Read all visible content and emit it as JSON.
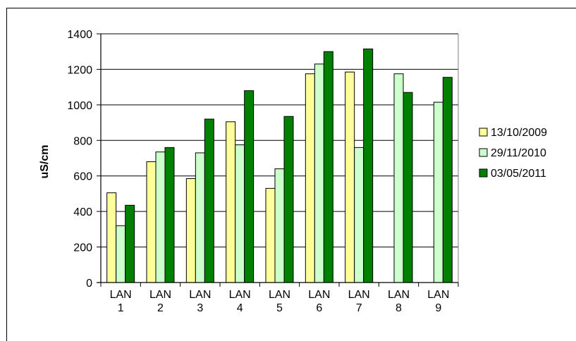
{
  "chart_data": {
    "type": "bar",
    "title": "",
    "xlabel": "",
    "ylabel": "uS/cm",
    "ylim": [
      0,
      1400
    ],
    "yticks": [
      0,
      200,
      400,
      600,
      800,
      1000,
      1200,
      1400
    ],
    "grid": true,
    "legend_position": "right",
    "categories": [
      [
        "LAN",
        "1"
      ],
      [
        "LAN",
        "2"
      ],
      [
        "LAN",
        "3"
      ],
      [
        "LAN",
        "4"
      ],
      [
        "LAN",
        "5"
      ],
      [
        "LAN",
        "6"
      ],
      [
        "LAN",
        "7"
      ],
      [
        "LAN",
        "8"
      ],
      [
        "LAN",
        "9"
      ]
    ],
    "series": [
      {
        "name": "13/10/2009",
        "color": "#ffff99",
        "values": [
          505,
          680,
          585,
          905,
          530,
          1175,
          1185,
          null,
          null
        ]
      },
      {
        "name": "29/11/2010",
        "color": "#ccffcc",
        "values": [
          320,
          735,
          730,
          775,
          640,
          1230,
          760,
          1175,
          1015
        ]
      },
      {
        "name": "03/05/2011",
        "color": "#008000",
        "values": [
          435,
          760,
          920,
          1080,
          935,
          1300,
          1315,
          1070,
          1155
        ]
      }
    ]
  }
}
